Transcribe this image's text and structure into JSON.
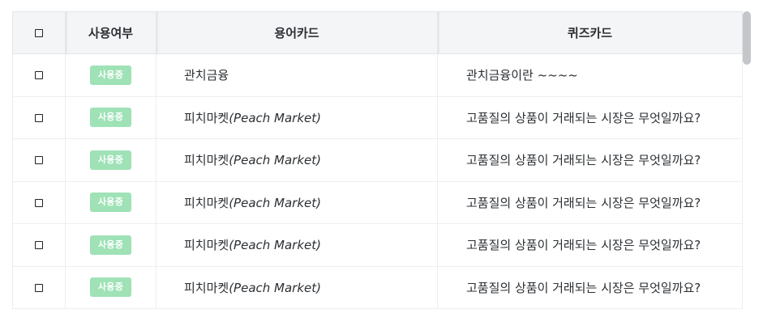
{
  "table": {
    "headers": {
      "select_all": "☐",
      "status": "사용여부",
      "term_card": "용어카드",
      "quiz_card": "퀴즈카드"
    },
    "rows": [
      {
        "checkbox": "☐",
        "status": "사용중",
        "term": "관치금융",
        "term_en": "",
        "quiz": "관치금융이란 ~~~~"
      },
      {
        "checkbox": "☐",
        "status": "사용중",
        "term": "피치마켓",
        "term_en": "(Peach Market)",
        "quiz": "고품질의 상품이 거래되는 시장은 무엇일까요?"
      },
      {
        "checkbox": "☐",
        "status": "사용중",
        "term": "피치마켓",
        "term_en": "(Peach Market)",
        "quiz": "고품질의 상품이 거래되는 시장은 무엇일까요?"
      },
      {
        "checkbox": "☐",
        "status": "사용중",
        "term": "피치마켓",
        "term_en": "(Peach Market)",
        "quiz": "고품질의 상품이 거래되는 시장은 무엇일까요?"
      },
      {
        "checkbox": "☐",
        "status": "사용중",
        "term": "피치마켓",
        "term_en": "(Peach Market)",
        "quiz": "고품질의 상품이 거래되는 시장은 무엇일까요?"
      },
      {
        "checkbox": "☐",
        "status": "사용중",
        "term": "피치마켓",
        "term_en": "(Peach Market)",
        "quiz": "고품질의 상품이 거래되는 시장은 무엇일까요?"
      }
    ]
  },
  "colors": {
    "badge_bg": "#9ee2b6",
    "header_bg": "#f4f5f7",
    "border": "#eceef1"
  }
}
